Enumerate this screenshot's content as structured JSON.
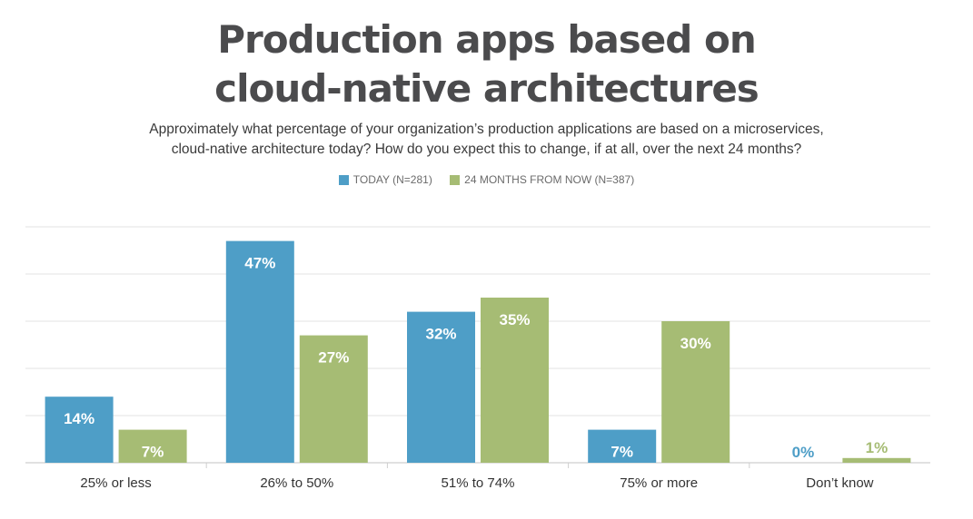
{
  "chart_data": {
    "type": "bar",
    "title_lines": [
      "Production apps based on",
      "cloud-native architectures"
    ],
    "subtitle_lines": [
      "Approximately what percentage of your organization’s production applications are based on a microservices,",
      "cloud-native architecture today? How do you expect this to change, if at all, over the next 24 months?"
    ],
    "categories": [
      "25% or less",
      "26% to 50%",
      "51% to 74%",
      "75% or more",
      "Don’t know"
    ],
    "series": [
      {
        "name": "TODAY (N=281)",
        "color": "#4e9ec7",
        "values": [
          14,
          47,
          32,
          7,
          0
        ],
        "labels": [
          "14%",
          "47%",
          "32%",
          "7%",
          "0%"
        ]
      },
      {
        "name": "24 MONTHS FROM NOW (N=387)",
        "color": "#a6bc74",
        "values": [
          7,
          27,
          35,
          30,
          1
        ],
        "labels": [
          "7%",
          "27%",
          "35%",
          "30%",
          "1%"
        ]
      }
    ],
    "ylim": [
      0,
      50
    ],
    "grid": true,
    "legend_position": "top-center",
    "label_color": "#ffffff"
  }
}
